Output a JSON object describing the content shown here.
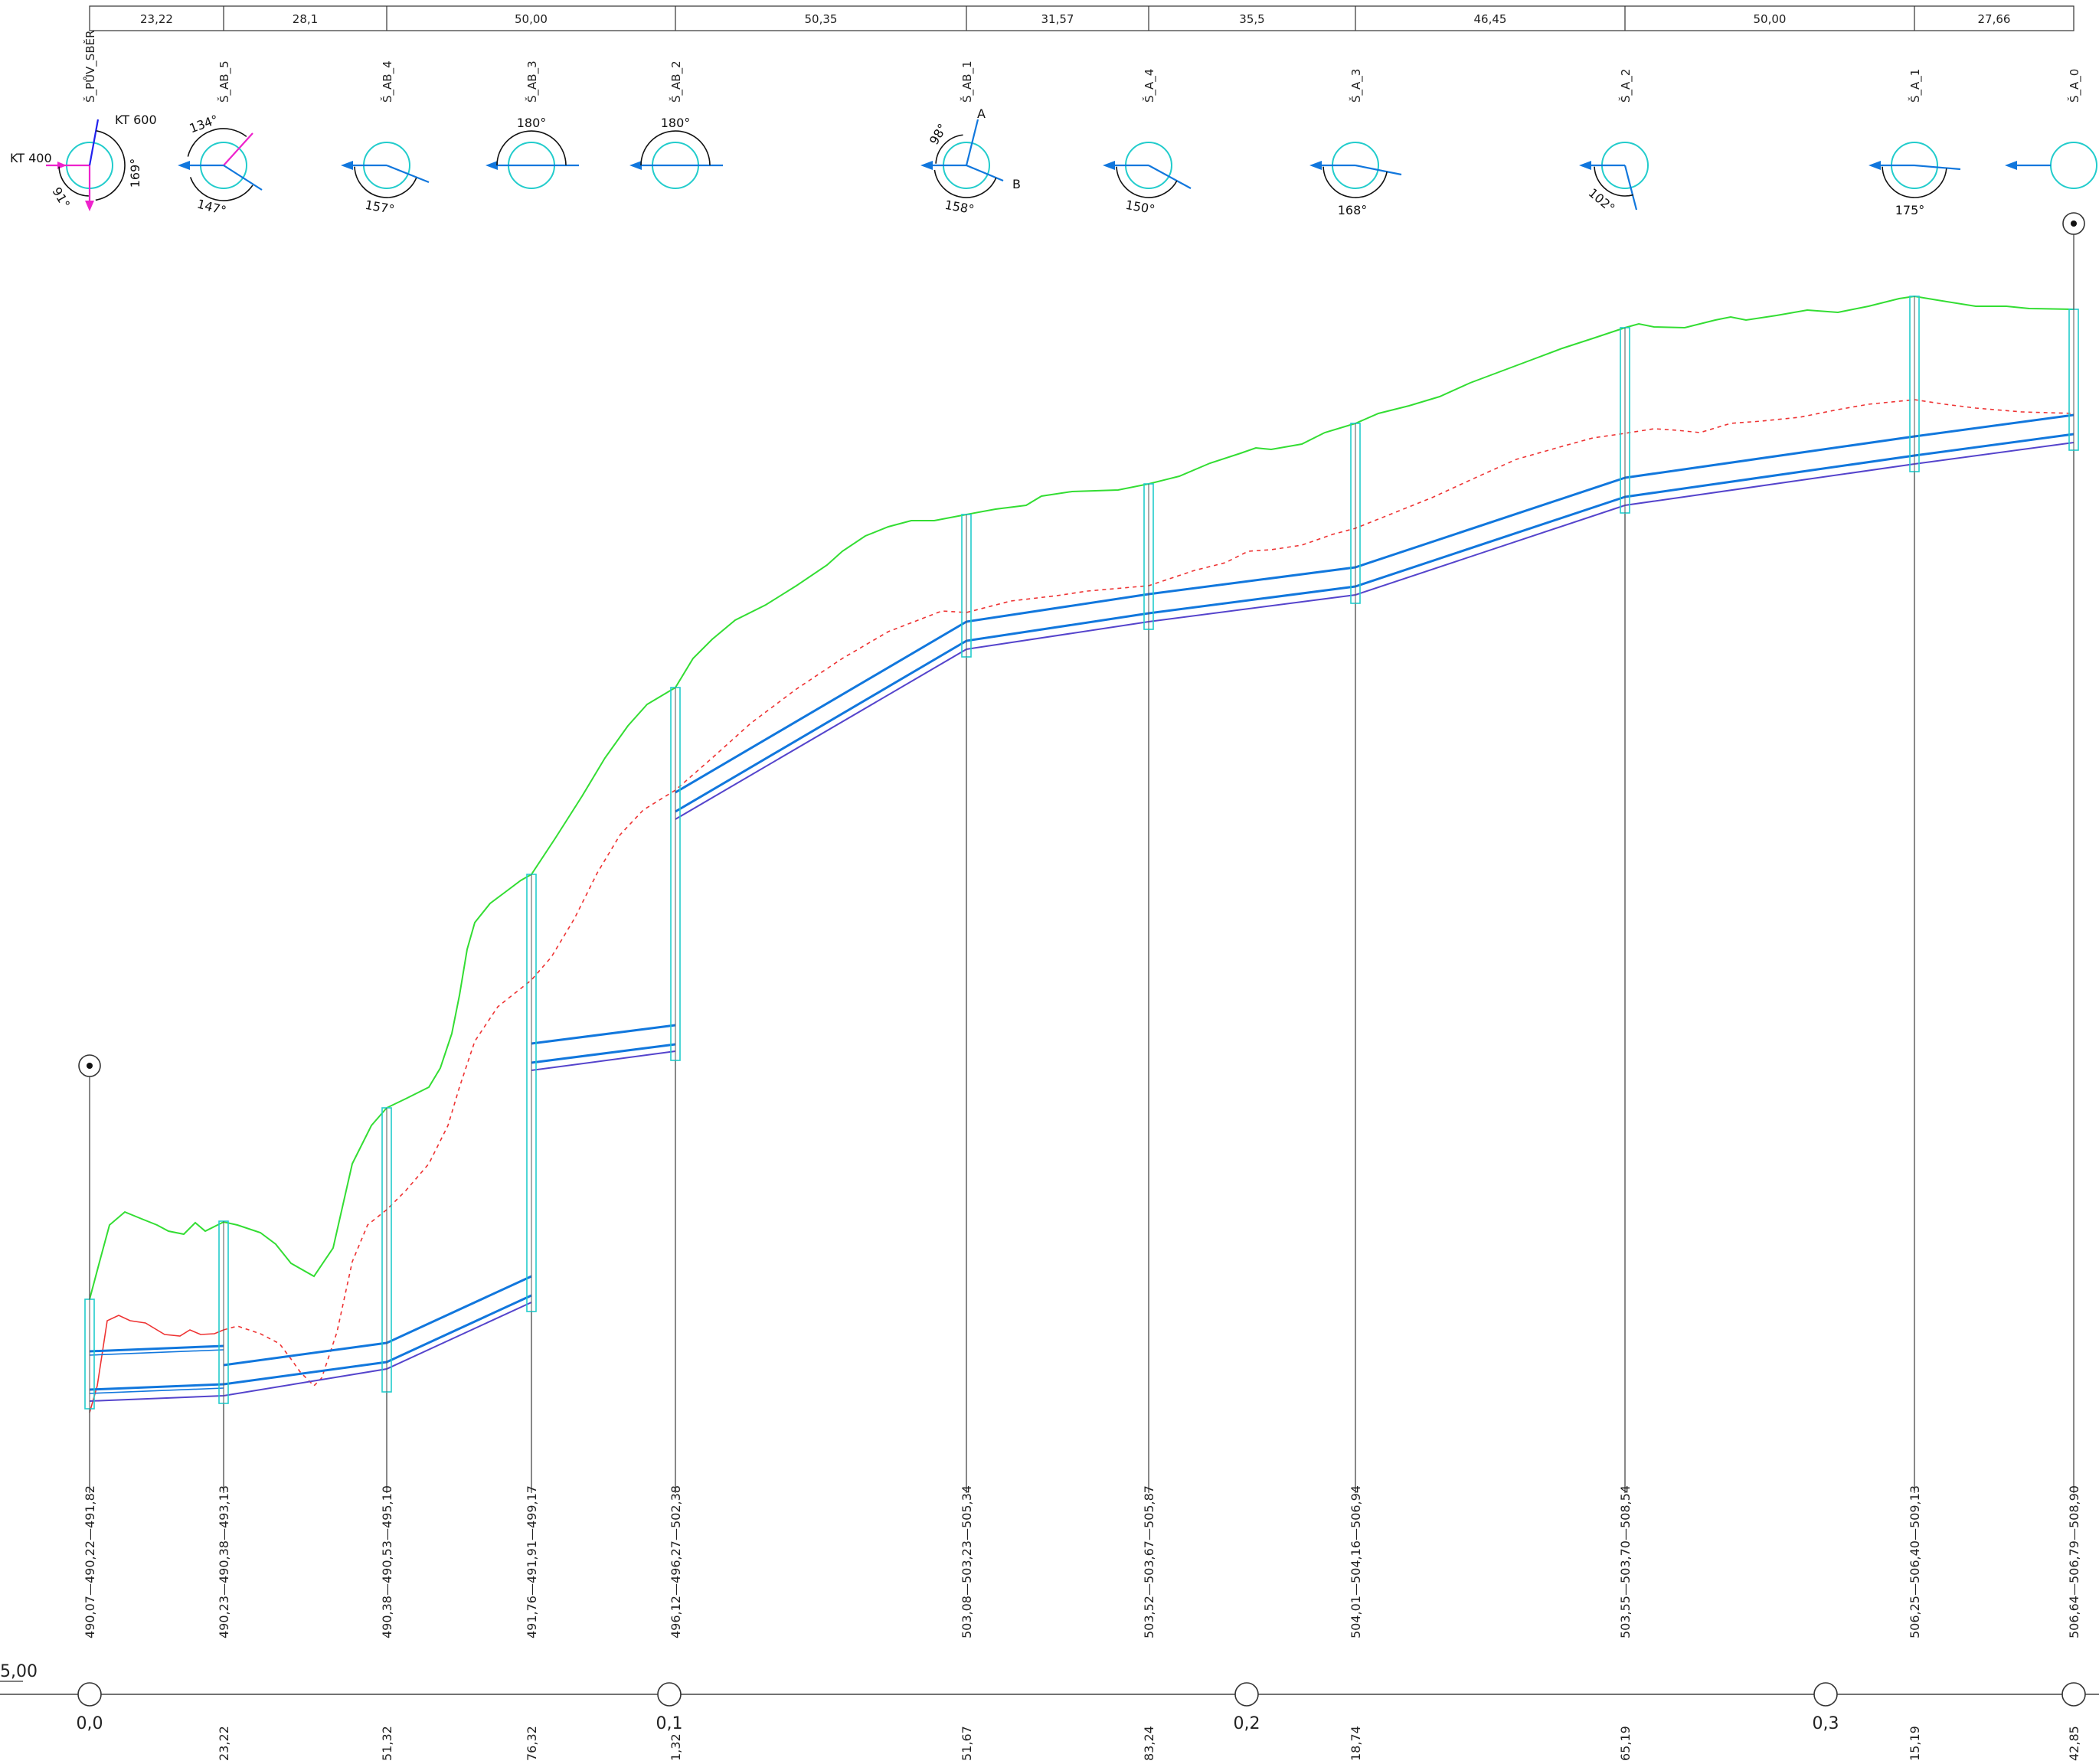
{
  "profile": {
    "segment_lengths": [
      "23,22",
      "28,1",
      "50,00",
      "50,35",
      "31,57",
      "35,5",
      "46,45",
      "50,00",
      "27,66"
    ],
    "manholes": [
      {
        "name": "Š_PŮV_SBĚR",
        "elevations": "490,07—490,22—491,82",
        "station": ""
      },
      {
        "name": "Š_AB_5",
        "elevations": "490,23—490,38—493,13",
        "station": "23,22"
      },
      {
        "name": "Š_AB_4",
        "elevations": "490,38—490,53—495,10",
        "station": "51,32"
      },
      {
        "name": "Š_AB_3",
        "elevations": "491,76—491,91—499,17",
        "station": "76,32"
      },
      {
        "name": "Š_AB_2",
        "elevations": "496,12—496,27—502,38",
        "station": "1,32"
      },
      {
        "name": "Š_AB_1",
        "elevations": "503,08—503,23—505,34",
        "station": "51,67"
      },
      {
        "name": "Š_A_4",
        "elevations": "503,52—503,67—505,87",
        "station": "83,24"
      },
      {
        "name": "Š_A_3",
        "elevations": "504,01—504,16—506,94",
        "station": "18,74"
      },
      {
        "name": "Š_A_2",
        "elevations": "503,55—503,70—508,54",
        "station": "65,19"
      },
      {
        "name": "Š_A_1",
        "elevations": "506,25—506,40—509,13",
        "station": "15,19"
      },
      {
        "name": "Š_A_0",
        "elevations": "506,64—506,79—508,90",
        "station": "42,85"
      }
    ],
    "km_marks": [
      "0,0",
      "0,1",
      "0,2",
      "0,3"
    ],
    "reference_level": "5,00",
    "angles": [
      "169°",
      "91°",
      "134°",
      "147°",
      "157°",
      "180°",
      "180°",
      "98°",
      "158°",
      "150°",
      "168°",
      "102°",
      "175°"
    ],
    "tags": {
      "kt600": "KT 600",
      "kt400": "KT 400",
      "branch_a": "A",
      "branch_b": "B"
    },
    "colors": {
      "terrain": "#33dd33",
      "existing": "#ee3333",
      "pipe": "#1177dd",
      "pipe_bottom": "#5544cc",
      "manhole": "#22cccc",
      "kt400": "#ee22cc",
      "kt600": "#2222ee"
    }
  }
}
